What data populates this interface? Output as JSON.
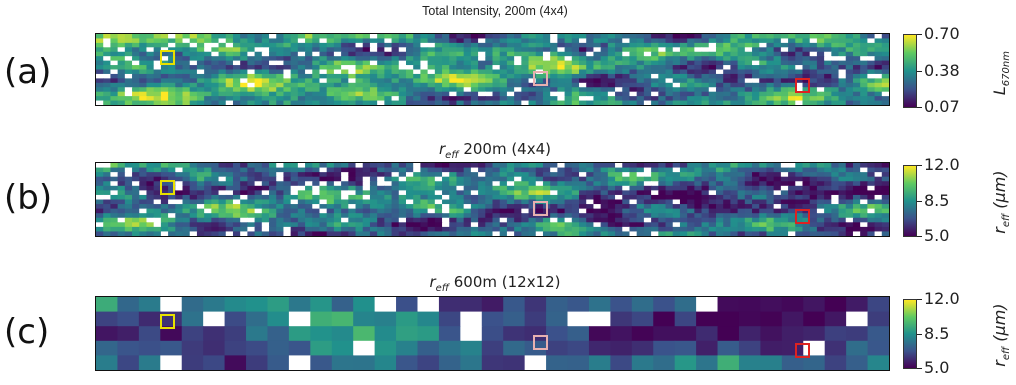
{
  "chart_data": [
    {
      "type": "heatmap",
      "panel_label": "(a)",
      "title": "Total Intensity, 200m (4x4)",
      "colorbar": {
        "label_symbol": "L",
        "label_subscript": "670nm",
        "ticks": [
          "0.70",
          "0.38",
          "0.07"
        ],
        "min": 0.07,
        "max": 0.7
      },
      "grid": {
        "cols": 110,
        "rows": 16,
        "cell_m": 200
      },
      "markers": [
        {
          "color": "#e8e000",
          "col_fraction": 0.09
        },
        {
          "color": "#e8b0b0",
          "col_fraction": 0.56
        },
        {
          "color": "#dd2222",
          "col_fraction": 0.89
        }
      ]
    },
    {
      "type": "heatmap",
      "panel_label": "(b)",
      "title_symbol": "r",
      "title_subscript": "eff",
      "title_rest": " 200m (4x4)",
      "colorbar": {
        "label_symbol": "r",
        "label_subscript": "eff",
        "label_unit": " (μm)",
        "ticks": [
          "12.0",
          "8.5",
          "5.0"
        ],
        "min": 5.0,
        "max": 12.0
      },
      "grid": {
        "cols": 110,
        "rows": 16,
        "cell_m": 200
      },
      "markers": [
        {
          "color": "#e8e000",
          "col_fraction": 0.09
        },
        {
          "color": "#e8b0b0",
          "col_fraction": 0.56
        },
        {
          "color": "#dd2222",
          "col_fraction": 0.89
        }
      ]
    },
    {
      "type": "heatmap",
      "panel_label": "(c)",
      "title_symbol": "r",
      "title_subscript": "eff",
      "title_rest": " 600m (12x12)",
      "colorbar": {
        "label_symbol": "r",
        "label_subscript": "eff",
        "label_unit": " (μm)",
        "ticks": [
          "12.0",
          "8.5",
          "5.0"
        ],
        "min": 5.0,
        "max": 12.0
      },
      "grid": {
        "cols": 37,
        "rows": 5,
        "cell_m": 600
      },
      "markers": [
        {
          "color": "#e8e000",
          "col_fraction": 0.09
        },
        {
          "color": "#e8b0b0",
          "col_fraction": 0.56
        },
        {
          "color": "#dd2222",
          "col_fraction": 0.89
        }
      ]
    }
  ]
}
